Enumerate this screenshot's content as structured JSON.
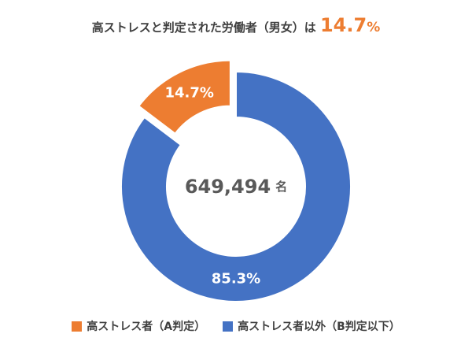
{
  "title": {
    "text": "高ストレスと判定された労働者（男女）は",
    "highlight_number": "14.7",
    "highlight_unit": "%"
  },
  "chart_data": {
    "type": "pie",
    "donut": true,
    "title": "高ストレスと判定された労働者（男女）は 14.7%",
    "center_label": {
      "value": "649,494",
      "unit": "名"
    },
    "slices": [
      {
        "name": "高ストレス者（A判定）",
        "value": 14.7,
        "label": "14.7%",
        "color": "#ED7D31",
        "exploded": true
      },
      {
        "name": "高ストレス者以外（B判定以下）",
        "value": 85.3,
        "label": "85.3%",
        "color": "#4472C4",
        "exploded": false
      }
    ],
    "legend_position": "bottom"
  }
}
